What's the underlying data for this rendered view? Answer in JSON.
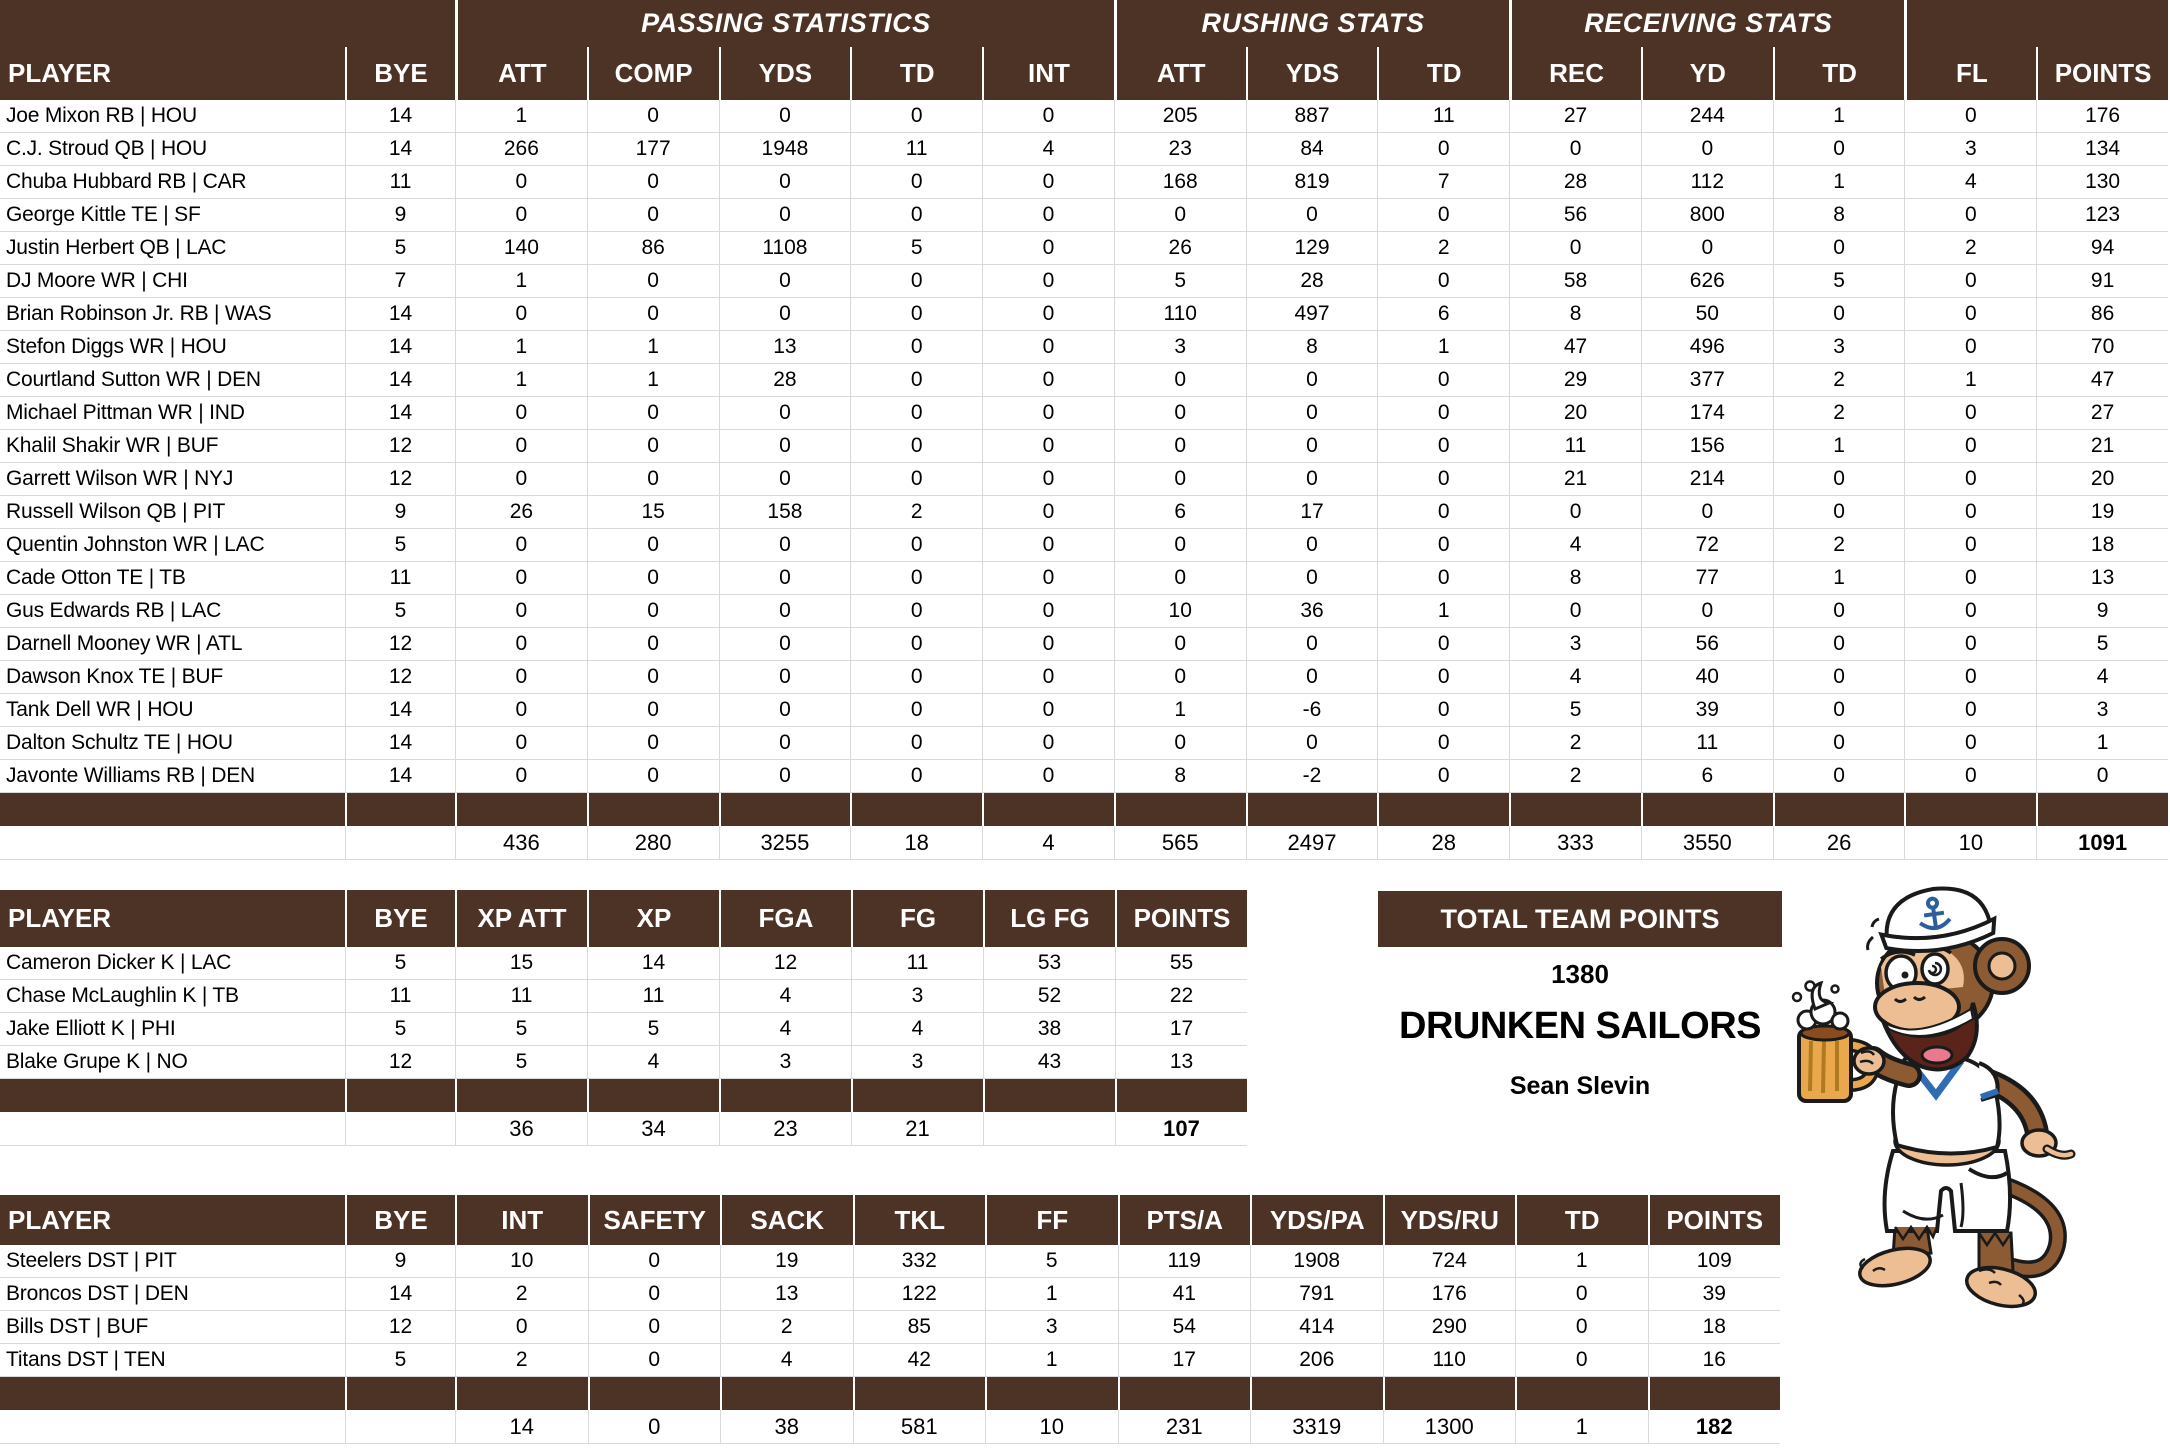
{
  "colors": {
    "header_bg": "#4d3226",
    "grid_line": "#d9d9d9",
    "header_text": "#ffffff",
    "body_text": "#000000",
    "collar_blue": "#2e6db4",
    "beer_gold": "#e9a84c"
  },
  "main_table": {
    "groups": [
      {
        "label": "",
        "span": 2
      },
      {
        "label": "PASSING STATISTICS",
        "span": 5
      },
      {
        "label": "RUSHING STATS",
        "span": 3
      },
      {
        "label": "RECEIVING STATS",
        "span": 3
      },
      {
        "label": "",
        "span": 2
      }
    ],
    "columns": [
      "PLAYER",
      "BYE",
      "ATT",
      "COMP",
      "YDS",
      "TD",
      "INT",
      "ATT",
      "YDS",
      "TD",
      "REC",
      "YD",
      "TD",
      "FL",
      "POINTS"
    ],
    "rows": [
      [
        "Joe Mixon RB | HOU",
        "14",
        "1",
        "0",
        "0",
        "0",
        "0",
        "205",
        "887",
        "11",
        "27",
        "244",
        "1",
        "0",
        "176"
      ],
      [
        "C.J. Stroud QB | HOU",
        "14",
        "266",
        "177",
        "1948",
        "11",
        "4",
        "23",
        "84",
        "0",
        "0",
        "0",
        "0",
        "3",
        "134"
      ],
      [
        "Chuba Hubbard RB | CAR",
        "11",
        "0",
        "0",
        "0",
        "0",
        "0",
        "168",
        "819",
        "7",
        "28",
        "112",
        "1",
        "4",
        "130"
      ],
      [
        "George Kittle TE | SF",
        "9",
        "0",
        "0",
        "0",
        "0",
        "0",
        "0",
        "0",
        "0",
        "56",
        "800",
        "8",
        "0",
        "123"
      ],
      [
        "Justin Herbert QB | LAC",
        "5",
        "140",
        "86",
        "1108",
        "5",
        "0",
        "26",
        "129",
        "2",
        "0",
        "0",
        "0",
        "2",
        "94"
      ],
      [
        "DJ Moore WR | CHI",
        "7",
        "1",
        "0",
        "0",
        "0",
        "0",
        "5",
        "28",
        "0",
        "58",
        "626",
        "5",
        "0",
        "91"
      ],
      [
        "Brian Robinson Jr. RB | WAS",
        "14",
        "0",
        "0",
        "0",
        "0",
        "0",
        "110",
        "497",
        "6",
        "8",
        "50",
        "0",
        "0",
        "86"
      ],
      [
        "Stefon Diggs WR | HOU",
        "14",
        "1",
        "1",
        "13",
        "0",
        "0",
        "3",
        "8",
        "1",
        "47",
        "496",
        "3",
        "0",
        "70"
      ],
      [
        "Courtland Sutton WR | DEN",
        "14",
        "1",
        "1",
        "28",
        "0",
        "0",
        "0",
        "0",
        "0",
        "29",
        "377",
        "2",
        "1",
        "47"
      ],
      [
        "Michael Pittman WR | IND",
        "14",
        "0",
        "0",
        "0",
        "0",
        "0",
        "0",
        "0",
        "0",
        "20",
        "174",
        "2",
        "0",
        "27"
      ],
      [
        "Khalil Shakir WR | BUF",
        "12",
        "0",
        "0",
        "0",
        "0",
        "0",
        "0",
        "0",
        "0",
        "11",
        "156",
        "1",
        "0",
        "21"
      ],
      [
        "Garrett Wilson WR | NYJ",
        "12",
        "0",
        "0",
        "0",
        "0",
        "0",
        "0",
        "0",
        "0",
        "21",
        "214",
        "0",
        "0",
        "20"
      ],
      [
        "Russell Wilson QB | PIT",
        "9",
        "26",
        "15",
        "158",
        "2",
        "0",
        "6",
        "17",
        "0",
        "0",
        "0",
        "0",
        "0",
        "19"
      ],
      [
        "Quentin Johnston WR | LAC",
        "5",
        "0",
        "0",
        "0",
        "0",
        "0",
        "0",
        "0",
        "0",
        "4",
        "72",
        "2",
        "0",
        "18"
      ],
      [
        "Cade Otton TE | TB",
        "11",
        "0",
        "0",
        "0",
        "0",
        "0",
        "0",
        "0",
        "0",
        "8",
        "77",
        "1",
        "0",
        "13"
      ],
      [
        "Gus Edwards RB | LAC",
        "5",
        "0",
        "0",
        "0",
        "0",
        "0",
        "10",
        "36",
        "1",
        "0",
        "0",
        "0",
        "0",
        "9"
      ],
      [
        "Darnell Mooney WR | ATL",
        "12",
        "0",
        "0",
        "0",
        "0",
        "0",
        "0",
        "0",
        "0",
        "3",
        "56",
        "0",
        "0",
        "5"
      ],
      [
        "Dawson Knox TE | BUF",
        "12",
        "0",
        "0",
        "0",
        "0",
        "0",
        "0",
        "0",
        "0",
        "4",
        "40",
        "0",
        "0",
        "4"
      ],
      [
        "Tank Dell WR | HOU",
        "14",
        "0",
        "0",
        "0",
        "0",
        "0",
        "1",
        "-6",
        "0",
        "5",
        "39",
        "0",
        "0",
        "3"
      ],
      [
        "Dalton Schultz TE | HOU",
        "14",
        "0",
        "0",
        "0",
        "0",
        "0",
        "0",
        "0",
        "0",
        "2",
        "11",
        "0",
        "0",
        "1"
      ],
      [
        "Javonte Williams RB | DEN",
        "14",
        "0",
        "0",
        "0",
        "0",
        "0",
        "8",
        "-2",
        "0",
        "2",
        "6",
        "0",
        "0",
        "0"
      ]
    ],
    "totals": [
      "",
      "",
      "436",
      "280",
      "3255",
      "18",
      "4",
      "565",
      "2497",
      "28",
      "333",
      "3550",
      "26",
      "10",
      "1091"
    ]
  },
  "kicker_table": {
    "columns": [
      "PLAYER",
      "BYE",
      "XP ATT",
      "XP",
      "FGA",
      "FG",
      "LG FG",
      "POINTS"
    ],
    "rows": [
      [
        "Cameron Dicker K | LAC",
        "5",
        "15",
        "14",
        "12",
        "11",
        "53",
        "55"
      ],
      [
        "Chase McLaughlin K | TB",
        "11",
        "11",
        "11",
        "4",
        "3",
        "52",
        "22"
      ],
      [
        "Jake Elliott K | PHI",
        "5",
        "5",
        "5",
        "4",
        "4",
        "38",
        "17"
      ],
      [
        "Blake Grupe K | NO",
        "12",
        "5",
        "4",
        "3",
        "3",
        "43",
        "13"
      ]
    ],
    "totals": [
      "",
      "",
      "36",
      "34",
      "23",
      "21",
      "",
      "107"
    ]
  },
  "dst_table": {
    "columns": [
      "PLAYER",
      "BYE",
      "INT",
      "SAFETY",
      "SACK",
      "TKL",
      "FF",
      "PTS/A",
      "YDS/PA",
      "YDS/RU",
      "TD",
      "POINTS"
    ],
    "rows": [
      [
        "Steelers DST | PIT",
        "9",
        "10",
        "0",
        "19",
        "332",
        "5",
        "119",
        "1908",
        "724",
        "1",
        "109"
      ],
      [
        "Broncos DST | DEN",
        "14",
        "2",
        "0",
        "13",
        "122",
        "1",
        "41",
        "791",
        "176",
        "0",
        "39"
      ],
      [
        "Bills DST | BUF",
        "12",
        "0",
        "0",
        "2",
        "85",
        "3",
        "54",
        "414",
        "290",
        "0",
        "18"
      ],
      [
        "Titans DST | TEN",
        "5",
        "2",
        "0",
        "4",
        "42",
        "1",
        "17",
        "206",
        "110",
        "0",
        "16"
      ]
    ],
    "totals": [
      "",
      "",
      "14",
      "0",
      "38",
      "581",
      "10",
      "231",
      "3319",
      "1300",
      "1",
      "182"
    ]
  },
  "team_summary": {
    "banner_label": "TOTAL TEAM POINTS",
    "total_points": "1380",
    "team_name": "DRUNKEN SAILORS",
    "owner_name": "Sean Slevin"
  },
  "mascot": {
    "icon": "sailor-monkey-beer-icon"
  }
}
